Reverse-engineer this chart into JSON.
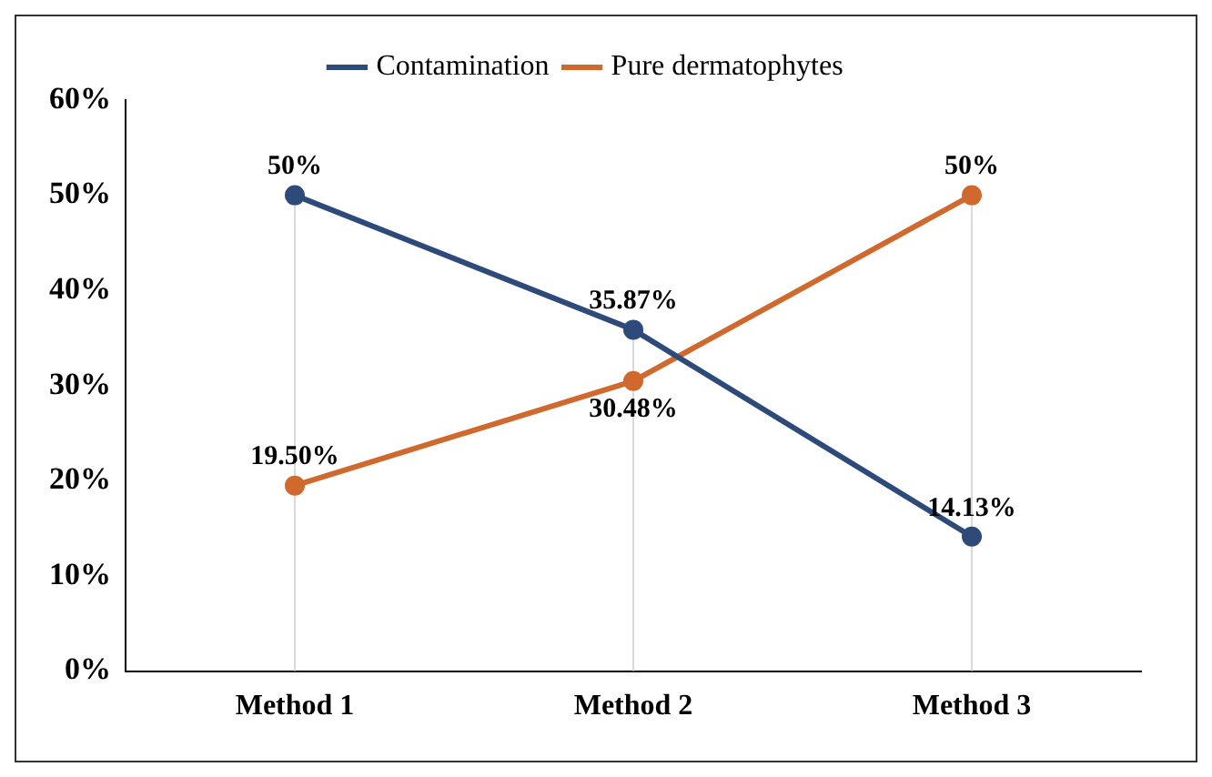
{
  "chart_data": {
    "type": "line",
    "categories": [
      "Method 1",
      "Method 2",
      "Method 3"
    ],
    "series": [
      {
        "name": "Contamination",
        "color": "#2e4a7a",
        "values": [
          50,
          35.87,
          14.13
        ],
        "value_labels": [
          "50%",
          "35.87%",
          "14.13%"
        ]
      },
      {
        "name": "Pure dermatophytes",
        "color": "#d0692d",
        "values": [
          19.5,
          30.48,
          50
        ],
        "value_labels": [
          "19.50%",
          "30.48%",
          "50%"
        ]
      }
    ],
    "ylim": [
      0,
      60
    ],
    "yticks": [
      {
        "value": 0,
        "label": "0%"
      },
      {
        "value": 10,
        "label": "10%"
      },
      {
        "value": 20,
        "label": "20%"
      },
      {
        "value": 30,
        "label": "30%"
      },
      {
        "value": 40,
        "label": "40%"
      },
      {
        "value": 50,
        "label": "50%"
      },
      {
        "value": 60,
        "label": "60%"
      }
    ],
    "legend": "top",
    "marker": "circle",
    "grid": "x"
  }
}
